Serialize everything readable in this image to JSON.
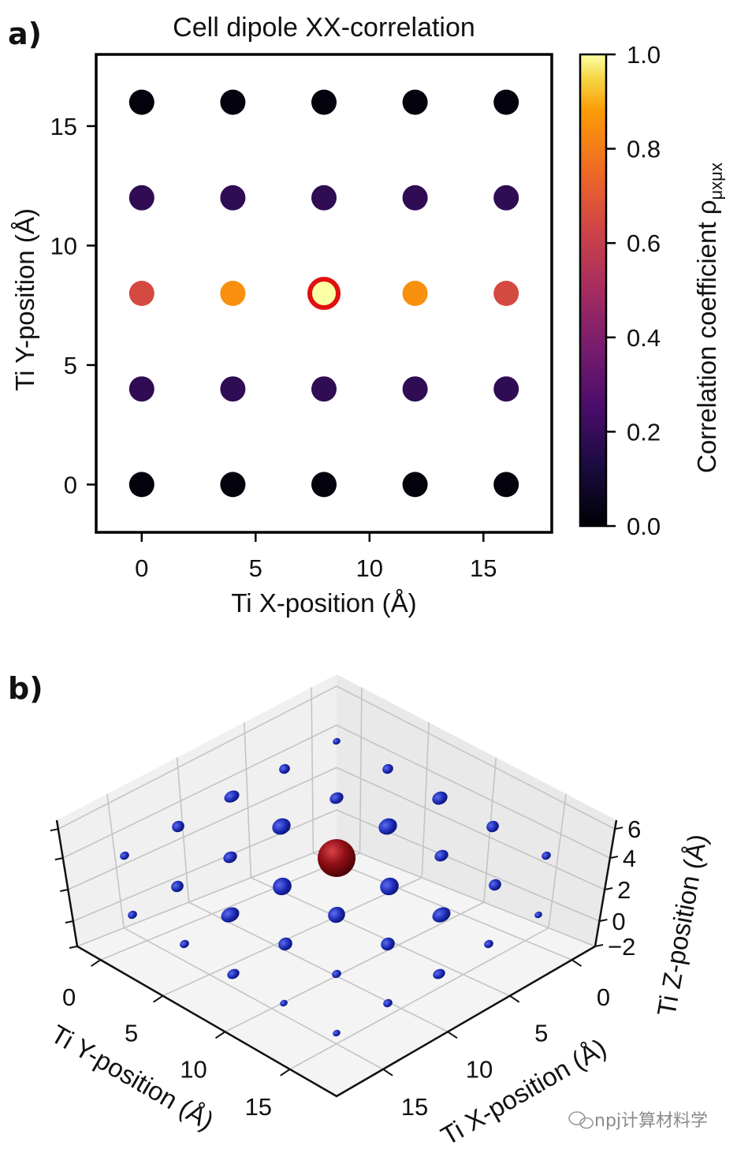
{
  "chart_data": [
    {
      "panel": "a)",
      "type": "scatter",
      "title": "Cell dipole XX-correlation",
      "xlabel": "Ti X-position (Å)",
      "ylabel": "Ti Y-position (Å)",
      "xlim": [
        -2,
        18
      ],
      "ylim": [
        -2,
        18
      ],
      "xticks": [
        0,
        5,
        10,
        15
      ],
      "yticks": [
        0,
        5,
        10,
        15
      ],
      "x_positions": [
        0,
        4,
        8,
        12,
        16
      ],
      "y_positions": [
        0,
        4,
        8,
        12,
        16
      ],
      "values": [
        [
          0.02,
          0.02,
          0.02,
          0.02,
          0.02
        ],
        [
          0.18,
          0.18,
          0.18,
          0.18,
          0.18
        ],
        [
          0.65,
          0.85,
          1.0,
          0.85,
          0.65
        ],
        [
          0.18,
          0.18,
          0.18,
          0.18,
          0.18
        ],
        [
          0.02,
          0.02,
          0.02,
          0.02,
          0.02
        ]
      ],
      "highlight": {
        "x": 8,
        "y": 8,
        "color": "#e01010"
      },
      "colorbar": {
        "label": "Correlation coefficient ρ",
        "label_sub": "μxμx",
        "range": [
          0.0,
          1.0
        ],
        "ticks": [
          "0.0",
          "0.2",
          "0.4",
          "0.6",
          "0.8",
          "1.0"
        ],
        "colormap": "inferno"
      }
    },
    {
      "panel": "b)",
      "type": "scatter3d",
      "xlabel": "Ti X-position (Å)",
      "ylabel": "Ti Y-position (Å)",
      "zlabel": "Ti Z-position (Å)",
      "xticks": [
        "0",
        "5",
        "10",
        "15"
      ],
      "yticks": [
        "0",
        "5",
        "10",
        "15"
      ],
      "zticks": [
        "−2",
        "0",
        "2",
        "4",
        "6"
      ],
      "center_marker": {
        "x": 8,
        "y": 8,
        "color": "#8b0d12"
      },
      "point_color": "#1a28b0"
    }
  ],
  "watermark": "npj计算材料学"
}
